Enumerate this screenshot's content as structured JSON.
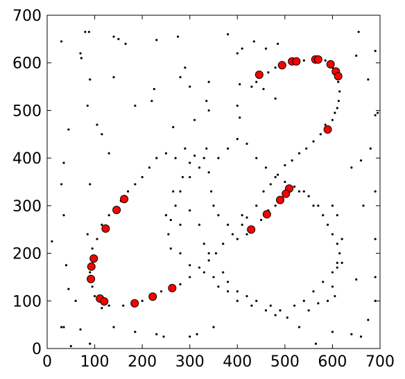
{
  "chart_data": {
    "type": "scatter",
    "xlim": [
      0,
      700
    ],
    "ylim": [
      0,
      700
    ],
    "xticks": [
      0,
      100,
      200,
      300,
      400,
      500,
      600,
      700
    ],
    "yticks": [
      0,
      100,
      200,
      300,
      400,
      500,
      600,
      700
    ],
    "series": [
      {
        "color": "#000000",
        "x": [
          30,
          80,
          88,
          70,
          72,
          140,
          150,
          165,
          230,
          275,
          380,
          410,
          400,
          435,
          460,
          485,
          655,
          650,
          690,
          675,
          695,
          690,
          680,
          660,
          640,
          690,
          665,
          690,
          650,
          690,
          690,
          675,
          660,
          640,
          600,
          530,
          565,
          50,
          70,
          90,
          60,
          45,
          40,
          35,
          30,
          35,
          45,
          10,
          35,
          30,
          140,
          185,
          230,
          245,
          300,
          350,
          315,
          90,
          85,
          105,
          115,
          130,
          90,
          85,
          140,
          225,
          280,
          300,
          340,
          335,
          290,
          310,
          265,
          185,
          220,
          340,
          400,
          405,
          405,
          430,
          440,
          480,
          455,
          465,
          480,
          540,
          585,
          600,
          612,
          615,
          613,
          610,
          605,
          600,
          585,
          575,
          560,
          545,
          530,
          515,
          500,
          485,
          470,
          455,
          440,
          420,
          410,
          390,
          370,
          355,
          340,
          320,
          300,
          280,
          240,
          200,
          160,
          130,
          115,
          100,
          95,
          90,
          95,
          105,
          115,
          130,
          155,
          170,
          185,
          200,
          215,
          230,
          250,
          270,
          290,
          310,
          320,
          300,
          280,
          270,
          260,
          255,
          260,
          280,
          300,
          330,
          350,
          360,
          380,
          400,
          420,
          440,
          470,
          490,
          520,
          540,
          560,
          580,
          600,
          610,
          615,
          610,
          600,
          590,
          580,
          570,
          550,
          530,
          500,
          480,
          465,
          450,
          430,
          410,
          420,
          400,
          380,
          360,
          350,
          345,
          340,
          360,
          380,
          400,
          420,
          440,
          460,
          480,
          500,
          520,
          540,
          560,
          600,
          610,
          620,
          620,
          610,
          600,
          605,
          590,
          570,
          550,
          505,
          480,
          460,
          430,
          400,
          380,
          370,
          340,
          330,
          320,
          300,
          280,
          250,
          265,
          285,
          300,
          330,
          335
        ],
        "values": [
          645,
          665,
          665,
          620,
          610,
          655,
          650,
          640,
          648,
          655,
          660,
          630,
          620,
          645,
          630,
          640,
          665,
          615,
          625,
          565,
          495,
          490,
          420,
          395,
          380,
          330,
          300,
          230,
          145,
          150,
          100,
          60,
          25,
          30,
          35,
          45,
          10,
          5,
          40,
          10,
          100,
          125,
          175,
          280,
          345,
          390,
          460,
          225,
          45,
          45,
          45,
          35,
          30,
          25,
          25,
          45,
          30,
          565,
          510,
          470,
          450,
          410,
          345,
          240,
          570,
          545,
          570,
          550,
          560,
          520,
          590,
          480,
          465,
          510,
          520,
          500,
          510,
          485,
          555,
          550,
          560,
          525,
          545,
          580,
          590,
          605,
          605,
          590,
          560,
          540,
          520,
          505,
          495,
          480,
          470,
          450,
          435,
          420,
          410,
          395,
          385,
          365,
          345,
          330,
          300,
          275,
          260,
          240,
          220,
          200,
          185,
          170,
          150,
          135,
          120,
          100,
          90,
          90,
          85,
          110,
          130,
          160,
          210,
          230,
          260,
          280,
          310,
          330,
          345,
          360,
          380,
          400,
          410,
          400,
          420,
          405,
          380,
          360,
          330,
          300,
          270,
          240,
          210,
          200,
          175,
          160,
          150,
          130,
          120,
          120,
          110,
          100,
          90,
          80,
          90,
          100,
          120,
          140,
          160,
          180,
          200,
          220,
          240,
          260,
          280,
          300,
          320,
          330,
          320,
          300,
          290,
          270,
          250,
          280,
          240,
          230,
          260,
          280,
          300,
          330,
          370,
          400,
          420,
          440,
          430,
          400,
          380,
          360,
          350,
          340,
          330,
          300,
          300,
          280,
          230,
          180,
          170,
          130,
          110,
          100,
          95,
          80,
          65,
          70,
          80,
          90,
          100,
          140,
          160,
          200,
          220,
          260,
          290,
          260,
          280,
          330,
          360,
          390,
          400,
          420
        ]
      },
      {
        "color": "#ff0000",
        "x": [
          446,
          494,
          515,
          524,
          564,
          570,
          596,
          607,
          612,
          590,
          509,
          502,
          490,
          462,
          429,
          162,
          146,
          123,
          98,
          93,
          92,
          111,
          120,
          184,
          222,
          263
        ],
        "values": [
          575,
          595,
          603,
          603,
          607,
          607,
          597,
          582,
          572,
          460,
          336,
          325,
          312,
          282,
          250,
          314,
          291,
          252,
          189,
          172,
          146,
          105,
          99,
          95,
          109,
          127
        ]
      }
    ]
  }
}
